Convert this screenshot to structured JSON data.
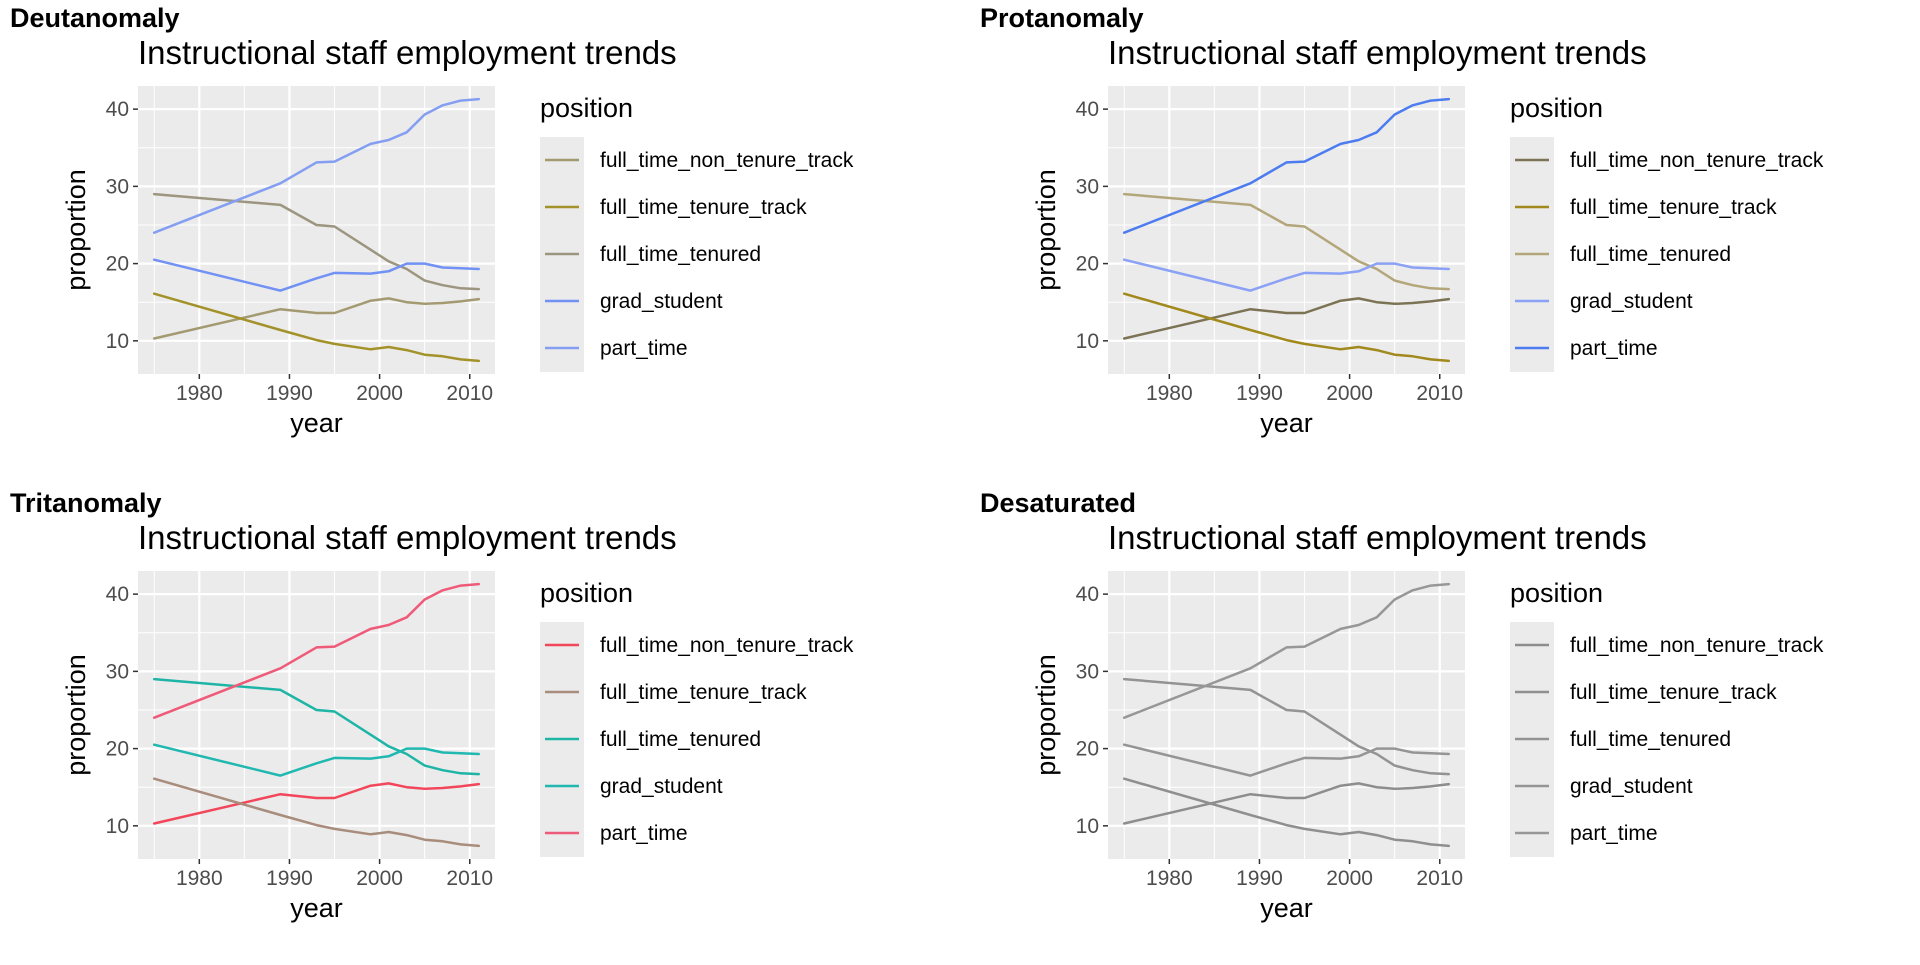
{
  "chart_data": [
    {
      "type": "line",
      "label": "Deutanomaly",
      "title": "Instructional staff employment trends",
      "xlabel": "year",
      "ylabel": "proportion",
      "xlim": [
        1975,
        2011
      ],
      "ylim": [
        7.4,
        41.3
      ],
      "xticks": [
        1980,
        1990,
        2000,
        2010
      ],
      "yticks": [
        10,
        20,
        30,
        40
      ],
      "grid": true,
      "legend_title": "position",
      "legend_position": "right",
      "x": [
        1975,
        1989,
        1993,
        1995,
        1999,
        2001,
        2003,
        2005,
        2007,
        2009,
        2011
      ],
      "series": [
        {
          "name": "full_time_non_tenure_track",
          "color": "#a39a72",
          "values": [
            10.3,
            14.1,
            13.6,
            13.6,
            15.2,
            15.5,
            15.0,
            14.8,
            14.9,
            15.1,
            15.4
          ]
        },
        {
          "name": "full_time_tenure_track",
          "color": "#a3922a",
          "values": [
            16.1,
            11.4,
            10.1,
            9.6,
            8.9,
            9.2,
            8.8,
            8.2,
            8.0,
            7.6,
            7.4
          ]
        },
        {
          "name": "full_time_tenured",
          "color": "#9c9580",
          "values": [
            29.0,
            27.6,
            25.0,
            24.8,
            21.8,
            20.3,
            19.3,
            17.8,
            17.2,
            16.8,
            16.7
          ]
        },
        {
          "name": "grad_student",
          "color": "#7192f4",
          "values": [
            20.5,
            16.5,
            18.1,
            18.8,
            18.7,
            19.0,
            20.0,
            20.0,
            19.5,
            19.4,
            19.3
          ]
        },
        {
          "name": "part_time",
          "color": "#849ef2",
          "values": [
            24.0,
            30.4,
            33.1,
            33.2,
            35.5,
            36.0,
            37.0,
            39.3,
            40.5,
            41.1,
            41.3
          ]
        }
      ]
    },
    {
      "type": "line",
      "label": "Protanomaly",
      "title": "Instructional staff employment trends",
      "xlabel": "year",
      "ylabel": "proportion",
      "xlim": [
        1975,
        2011
      ],
      "ylim": [
        7.4,
        41.3
      ],
      "xticks": [
        1980,
        1990,
        2000,
        2010
      ],
      "yticks": [
        10,
        20,
        30,
        40
      ],
      "grid": true,
      "legend_title": "position",
      "legend_position": "right",
      "x": [
        1975,
        1989,
        1993,
        1995,
        1999,
        2001,
        2003,
        2005,
        2007,
        2009,
        2011
      ],
      "series": [
        {
          "name": "full_time_non_tenure_track",
          "color": "#7c7355",
          "values": [
            10.3,
            14.1,
            13.6,
            13.6,
            15.2,
            15.5,
            15.0,
            14.8,
            14.9,
            15.1,
            15.4
          ]
        },
        {
          "name": "full_time_tenure_track",
          "color": "#a1891d",
          "values": [
            16.1,
            11.4,
            10.1,
            9.6,
            8.9,
            9.2,
            8.8,
            8.2,
            8.0,
            7.6,
            7.4
          ]
        },
        {
          "name": "full_time_tenured",
          "color": "#b3a67a",
          "values": [
            29.0,
            27.6,
            25.0,
            24.8,
            21.8,
            20.3,
            19.3,
            17.8,
            17.2,
            16.8,
            16.7
          ]
        },
        {
          "name": "grad_student",
          "color": "#8aa1f5",
          "values": [
            20.5,
            16.5,
            18.1,
            18.8,
            18.7,
            19.0,
            20.0,
            20.0,
            19.5,
            19.4,
            19.3
          ]
        },
        {
          "name": "part_time",
          "color": "#4d7cf0",
          "values": [
            24.0,
            30.4,
            33.1,
            33.2,
            35.5,
            36.0,
            37.0,
            39.3,
            40.5,
            41.1,
            41.3
          ]
        }
      ]
    },
    {
      "type": "line",
      "label": "Tritanomaly",
      "title": "Instructional staff employment trends",
      "xlabel": "year",
      "ylabel": "proportion",
      "xlim": [
        1975,
        2011
      ],
      "ylim": [
        7.4,
        41.3
      ],
      "xticks": [
        1980,
        1990,
        2000,
        2010
      ],
      "yticks": [
        10,
        20,
        30,
        40
      ],
      "grid": true,
      "legend_title": "position",
      "legend_position": "right",
      "x": [
        1975,
        1989,
        1993,
        1995,
        1999,
        2001,
        2003,
        2005,
        2007,
        2009,
        2011
      ],
      "series": [
        {
          "name": "full_time_non_tenure_track",
          "color": "#f2465b",
          "values": [
            10.3,
            14.1,
            13.6,
            13.6,
            15.2,
            15.5,
            15.0,
            14.8,
            14.9,
            15.1,
            15.4
          ]
        },
        {
          "name": "full_time_tenure_track",
          "color": "#a88c7c",
          "values": [
            16.1,
            11.4,
            10.1,
            9.6,
            8.9,
            9.2,
            8.8,
            8.2,
            8.0,
            7.6,
            7.4
          ]
        },
        {
          "name": "full_time_tenured",
          "color": "#1fb5a6",
          "values": [
            29.0,
            27.6,
            25.0,
            24.8,
            21.8,
            20.3,
            19.3,
            17.8,
            17.2,
            16.8,
            16.7
          ]
        },
        {
          "name": "grad_student",
          "color": "#20b8b0",
          "values": [
            20.5,
            16.5,
            18.1,
            18.8,
            18.7,
            19.0,
            20.0,
            20.0,
            19.5,
            19.4,
            19.3
          ]
        },
        {
          "name": "part_time",
          "color": "#ef5a78",
          "values": [
            24.0,
            30.4,
            33.1,
            33.2,
            35.5,
            36.0,
            37.0,
            39.3,
            40.5,
            41.1,
            41.3
          ]
        }
      ]
    },
    {
      "type": "line",
      "label": "Desaturated",
      "title": "Instructional staff employment trends",
      "xlabel": "year",
      "ylabel": "proportion",
      "xlim": [
        1975,
        2011
      ],
      "ylim": [
        7.4,
        41.3
      ],
      "xticks": [
        1980,
        1990,
        2000,
        2010
      ],
      "yticks": [
        10,
        20,
        30,
        40
      ],
      "grid": true,
      "legend_title": "position",
      "legend_position": "right",
      "x": [
        1975,
        1989,
        1993,
        1995,
        1999,
        2001,
        2003,
        2005,
        2007,
        2009,
        2011
      ],
      "series": [
        {
          "name": "full_time_non_tenure_track",
          "color": "#8d8d8d",
          "values": [
            10.3,
            14.1,
            13.6,
            13.6,
            15.2,
            15.5,
            15.0,
            14.8,
            14.9,
            15.1,
            15.4
          ]
        },
        {
          "name": "full_time_tenure_track",
          "color": "#8f8f8f",
          "values": [
            16.1,
            11.4,
            10.1,
            9.6,
            8.9,
            9.2,
            8.8,
            8.2,
            8.0,
            7.6,
            7.4
          ]
        },
        {
          "name": "full_time_tenured",
          "color": "#939393",
          "values": [
            29.0,
            27.6,
            25.0,
            24.8,
            21.8,
            20.3,
            19.3,
            17.8,
            17.2,
            16.8,
            16.7
          ]
        },
        {
          "name": "grad_student",
          "color": "#959595",
          "values": [
            20.5,
            16.5,
            18.1,
            18.8,
            18.7,
            19.0,
            20.0,
            20.0,
            19.5,
            19.4,
            19.3
          ]
        },
        {
          "name": "part_time",
          "color": "#979797",
          "values": [
            24.0,
            30.4,
            33.1,
            33.2,
            35.5,
            36.0,
            37.0,
            39.3,
            40.5,
            41.1,
            41.3
          ]
        }
      ]
    }
  ]
}
